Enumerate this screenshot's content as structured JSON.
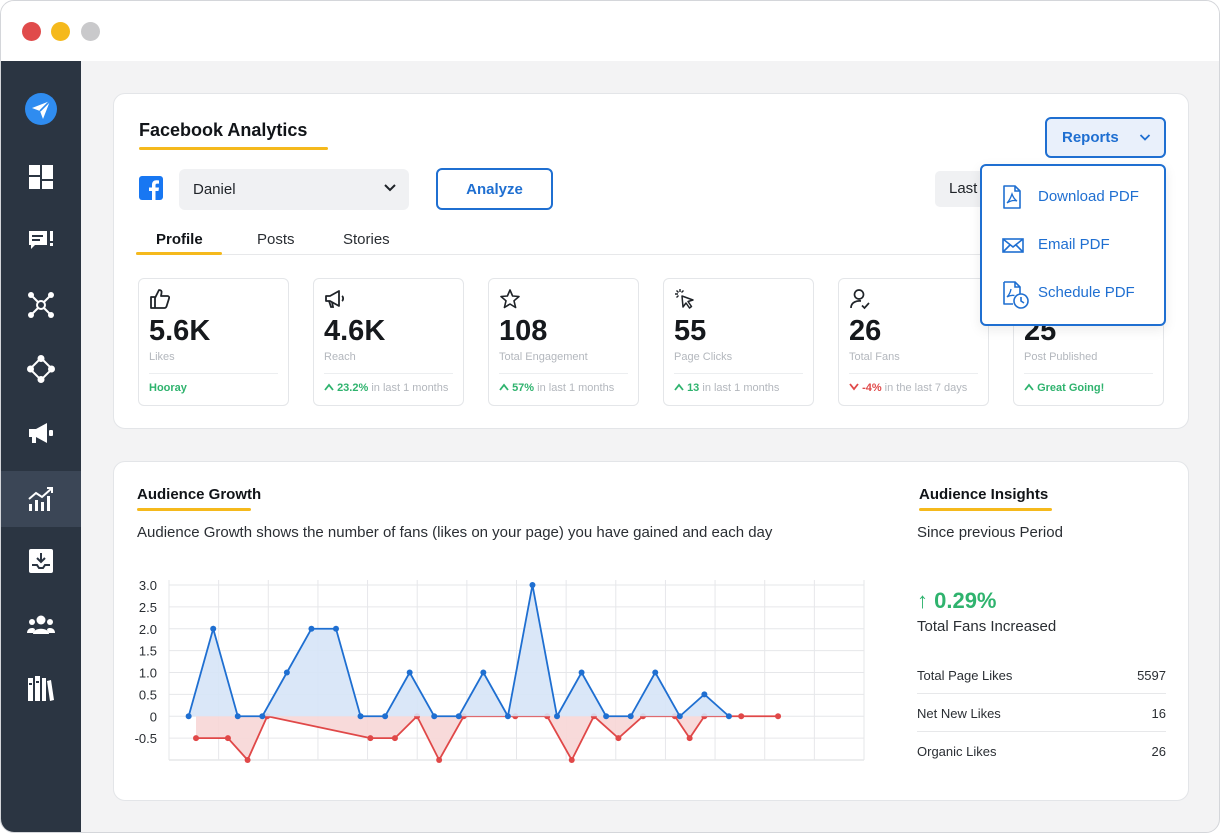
{
  "sidebar": {
    "items": [
      {
        "icon": "send-icon"
      },
      {
        "icon": "dashboard-icon"
      },
      {
        "icon": "messages-icon"
      },
      {
        "icon": "network-icon"
      },
      {
        "icon": "hub-icon"
      },
      {
        "icon": "megaphone-icon"
      },
      {
        "icon": "analytics-icon",
        "active": true
      },
      {
        "icon": "inbox-download-icon"
      },
      {
        "icon": "team-icon"
      },
      {
        "icon": "library-icon"
      }
    ]
  },
  "analytics": {
    "title": "Facebook Analytics",
    "account": "Daniel",
    "analyze_label": "Analyze",
    "date_range": "Last",
    "tabs": [
      "Profile",
      "Posts",
      "Stories"
    ],
    "reports_label": "Reports",
    "reports_menu": [
      "Download PDF",
      "Email PDF",
      "Schedule PDF"
    ]
  },
  "stats": [
    {
      "value": "5.6K",
      "label": "Likes",
      "foot_strong": "Hooray",
      "foot_rest": "",
      "trend": "none"
    },
    {
      "value": "4.6K",
      "label": "Reach",
      "foot_strong": "23.2%",
      "foot_rest": " in last 1 months",
      "trend": "up"
    },
    {
      "value": "108",
      "label": "Total Engagement",
      "foot_strong": "57%",
      "foot_rest": " in last 1 months",
      "trend": "up"
    },
    {
      "value": "55",
      "label": "Page Clicks",
      "foot_strong": "13",
      "foot_rest": " in last 1 months",
      "trend": "up"
    },
    {
      "value": "26",
      "label": "Total Fans",
      "foot_strong": "-4%",
      "foot_rest": " in the last 7 days",
      "trend": "down"
    },
    {
      "value": "25",
      "label": "Post Published",
      "foot_strong": "Great Going!",
      "foot_rest": "",
      "trend": "up"
    }
  ],
  "growth": {
    "title": "Audience Growth",
    "description": "Audience Growth shows the number of fans (likes on your page) you have gained and each day"
  },
  "insights": {
    "title": "Audience Insights",
    "since": "Since previous Period",
    "change": "↑ 0.29%",
    "change_label": "Total Fans Increased",
    "rows": [
      {
        "label": "Total Page Likes",
        "value": "5597"
      },
      {
        "label": "Net New Likes",
        "value": "16"
      },
      {
        "label": "Organic Likes",
        "value": "26"
      }
    ]
  },
  "chart_data": {
    "type": "area",
    "y_ticks": [
      "3.0",
      "2.5",
      "2.0",
      "1.5",
      "1.0",
      "0.5",
      "0",
      "-0.5"
    ],
    "ylim": [
      -1.0,
      3.0
    ],
    "xlim": [
      -0.8,
      27.5
    ],
    "grid": true,
    "series": [
      {
        "color": "#1f6fd1",
        "fill": "#d6e4f7",
        "points": [
          [
            0,
            0
          ],
          [
            1,
            2
          ],
          [
            2,
            0
          ],
          [
            3,
            0
          ],
          [
            4,
            1
          ],
          [
            5,
            2
          ],
          [
            6,
            2
          ],
          [
            7,
            0
          ],
          [
            8,
            0
          ],
          [
            9,
            1
          ],
          [
            10,
            0
          ],
          [
            11,
            0
          ],
          [
            12,
            1
          ],
          [
            13,
            0
          ],
          [
            14,
            3
          ],
          [
            15,
            0
          ],
          [
            16,
            1
          ],
          [
            17,
            0
          ],
          [
            18,
            0
          ],
          [
            19,
            1
          ],
          [
            20,
            0
          ],
          [
            21,
            0.5
          ],
          [
            22,
            0
          ]
        ]
      },
      {
        "color": "#e04848",
        "fill": "#f7d6d6",
        "points": [
          [
            0.3,
            -0.5
          ],
          [
            1.6,
            -0.5
          ],
          [
            2.4,
            -1
          ],
          [
            3.2,
            0
          ],
          [
            7.4,
            -0.5
          ],
          [
            8.4,
            -0.5
          ],
          [
            9.3,
            0
          ],
          [
            10.2,
            -1
          ],
          [
            11.2,
            0
          ],
          [
            13.3,
            0
          ],
          [
            14.6,
            0
          ],
          [
            15.6,
            -1
          ],
          [
            16.5,
            0
          ],
          [
            17.5,
            -0.5
          ],
          [
            18.5,
            0
          ],
          [
            19.8,
            0
          ],
          [
            20.4,
            -0.5
          ],
          [
            21,
            0
          ],
          [
            22.5,
            0
          ],
          [
            24,
            0
          ]
        ]
      }
    ]
  }
}
